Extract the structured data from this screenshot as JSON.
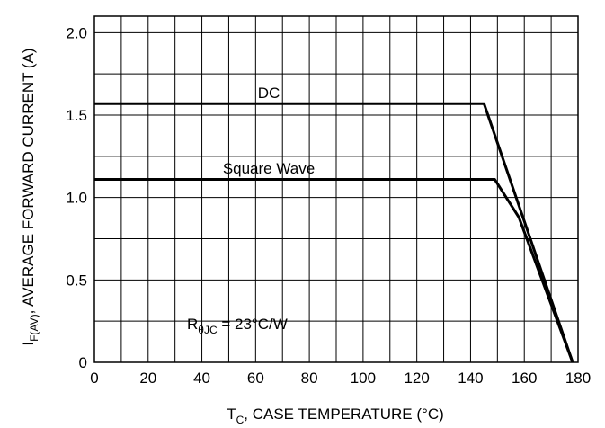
{
  "chart_data": {
    "type": "line",
    "x_axis": {
      "label_main": "T",
      "label_sub": "C",
      "label_rest": ", CASE TEMPERATURE (°C)",
      "range": [
        0,
        180
      ],
      "ticks": [
        0,
        20,
        40,
        60,
        80,
        100,
        120,
        140,
        160,
        180
      ],
      "tick_labels": [
        "0",
        "20",
        "40",
        "60",
        "80",
        "100",
        "120",
        "140",
        "160",
        "180"
      ]
    },
    "y_axis": {
      "label_main": "I",
      "label_sub": "F(AV)",
      "label_rest": ", AVERAGE FORWARD CURRENT (A)",
      "range": [
        0,
        2.1
      ],
      "ticks": [
        0,
        0.5,
        1.0,
        1.5,
        2.0
      ],
      "tick_labels": [
        "0",
        "0.5",
        "1.0",
        "1.5",
        "2.0"
      ]
    },
    "grid": true,
    "series": [
      {
        "name": "DC",
        "points": [
          [
            0,
            1.57
          ],
          [
            145,
            1.57
          ],
          [
            178,
            0
          ]
        ]
      },
      {
        "name": "Square Wave",
        "points": [
          [
            0,
            1.11
          ],
          [
            149,
            1.11
          ],
          [
            158,
            0.88
          ],
          [
            178,
            0
          ]
        ]
      }
    ],
    "annotations": {
      "dc": "DC",
      "square": "Square Wave",
      "r_main": "R",
      "r_sub": "θJC",
      "r_rest": " = 23°C/W"
    }
  }
}
